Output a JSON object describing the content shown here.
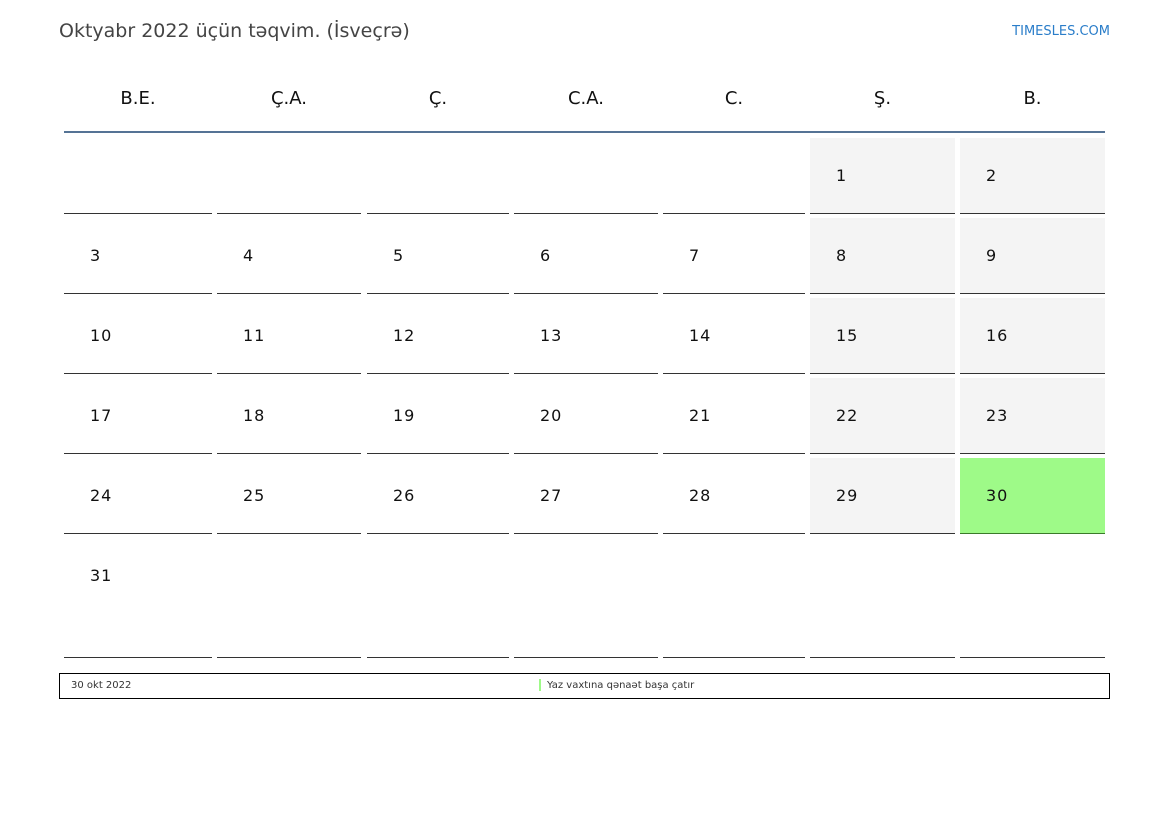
{
  "title": "Oktyabr 2022 üçün təqvim. (İsveçrə)",
  "brand": "TIMESLES.COM",
  "weekdays": [
    "B.E.",
    "Ç.A.",
    "Ç.",
    "C.A.",
    "C.",
    "Ş.",
    "B."
  ],
  "weeks": [
    [
      "",
      "",
      "",
      "",
      "",
      "1",
      "2"
    ],
    [
      "3",
      "4",
      "5",
      "6",
      "7",
      "8",
      "9"
    ],
    [
      "10",
      "11",
      "12",
      "13",
      "14",
      "15",
      "16"
    ],
    [
      "17",
      "18",
      "19",
      "20",
      "21",
      "22",
      "23"
    ],
    [
      "24",
      "25",
      "26",
      "27",
      "28",
      "29",
      "30"
    ],
    [
      "31",
      "",
      "",
      "",
      "",
      "",
      ""
    ]
  ],
  "highlighted_day": "30",
  "colors": {
    "highlight": "#9efa88",
    "weekend": "#f4f4f4",
    "header_line": "#557395",
    "brand": "#2a7dc9"
  },
  "footer": {
    "date": "30 okt 2022",
    "event": "Yaz vaxtına qənaət başa çatır"
  }
}
